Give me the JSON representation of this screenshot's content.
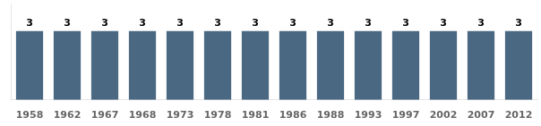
{
  "chart_data": {
    "type": "bar",
    "categories": [
      "1958",
      "1962",
      "1967",
      "1968",
      "1973",
      "1978",
      "1981",
      "1986",
      "1988",
      "1993",
      "1997",
      "2002",
      "2007",
      "2012"
    ],
    "values": [
      3,
      3,
      3,
      3,
      3,
      3,
      3,
      3,
      3,
      3,
      3,
      3,
      3,
      3
    ],
    "color": "#4a6882",
    "ylim": [
      0,
      4.2
    ],
    "data_labels": true,
    "tick_labels": "x",
    "grid": false
  }
}
